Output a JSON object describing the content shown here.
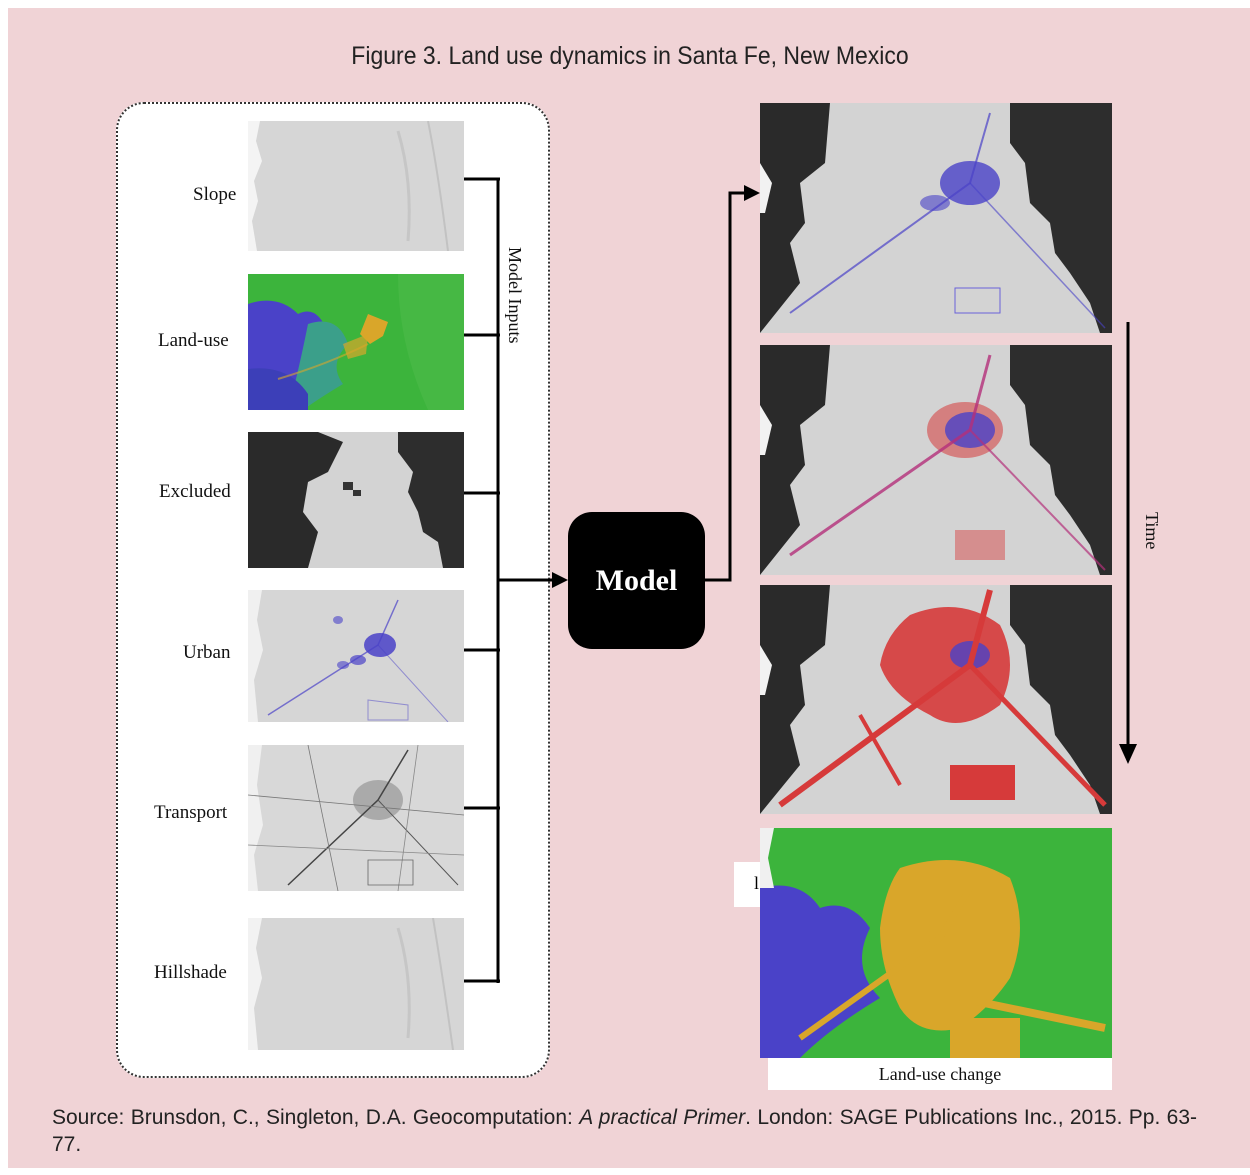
{
  "figure": {
    "title": "Figure 3. Land use dynamics in Santa Fe, New Mexico"
  },
  "inputs": {
    "group_label": "Model Inputs",
    "items": [
      {
        "label": "Slope"
      },
      {
        "label": "Land-use"
      },
      {
        "label": "Excluded"
      },
      {
        "label": "Urban"
      },
      {
        "label": "Transport"
      },
      {
        "label": "Hillshade"
      }
    ]
  },
  "model": {
    "label": "Model"
  },
  "outputs": {
    "time_label": "Time",
    "final_label": "Land-use change",
    "fragment_text": "l"
  },
  "source": {
    "prefix": "Source: Brunsdon, C., Singleton, D.A. Geocomputation: ",
    "title_italic": "A practical Primer",
    "suffix": ". London: SAGE Publications Inc., 2015. Pp. 63-77."
  },
  "colors": {
    "background": "#f0d3d6",
    "urban_blue": "#4a42c8",
    "growth_red": "#d63a3a",
    "landuse_green": "#3cb43c",
    "landuse_yellow": "#d9a62a",
    "mask_dark": "#2a2a2a",
    "terrain_gray": "#cfcfcf"
  }
}
